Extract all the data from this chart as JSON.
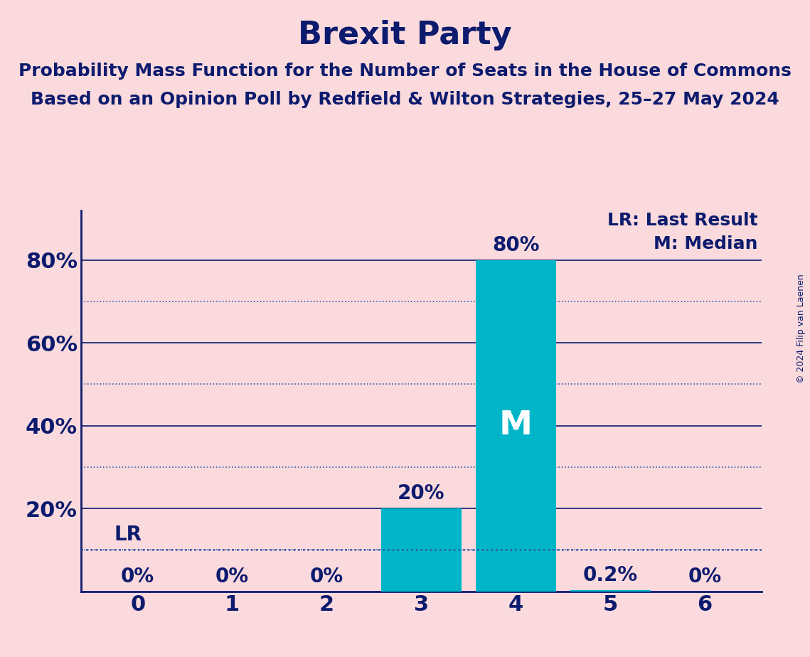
{
  "title": "Brexit Party",
  "subtitle1": "Probability Mass Function for the Number of Seats in the House of Commons",
  "subtitle2": "Based on an Opinion Poll by Redfield & Wilton Strategies, 25–27 May 2024",
  "copyright": "© 2024 Filip van Laenen",
  "categories": [
    0,
    1,
    2,
    3,
    4,
    5,
    6
  ],
  "values": [
    0.0,
    0.0,
    0.0,
    0.2,
    0.8,
    0.002,
    0.0
  ],
  "bar_labels": [
    "0%",
    "0%",
    "0%",
    "20%",
    "80%",
    "0.2%",
    "0%"
  ],
  "bar_color": "#00B5C8",
  "background_color": "#FADADD",
  "title_color": "#0D1B6E",
  "axis_color": "#0D1B6E",
  "grid_solid_color": "#0D1B6E",
  "grid_dotted_color": "#3355AA",
  "bar_label_color_outside": "#0D1B6E",
  "bar_label_color_inside": "#FFFFFF",
  "median_label": "M",
  "median_bar_index": 4,
  "lr_value": 0.1,
  "lr_label": "LR",
  "legend_lr": "LR: Last Result",
  "legend_m": "M: Median",
  "ylim": [
    0,
    0.92
  ],
  "yticks": [
    0.0,
    0.2,
    0.4,
    0.6,
    0.8
  ],
  "ytick_labels": [
    "",
    "20%",
    "40%",
    "60%",
    "80%"
  ],
  "title_fontsize": 32,
  "subtitle_fontsize": 18,
  "bar_label_fontsize": 20,
  "axis_label_fontsize": 22,
  "legend_fontsize": 18,
  "copyright_fontsize": 9
}
